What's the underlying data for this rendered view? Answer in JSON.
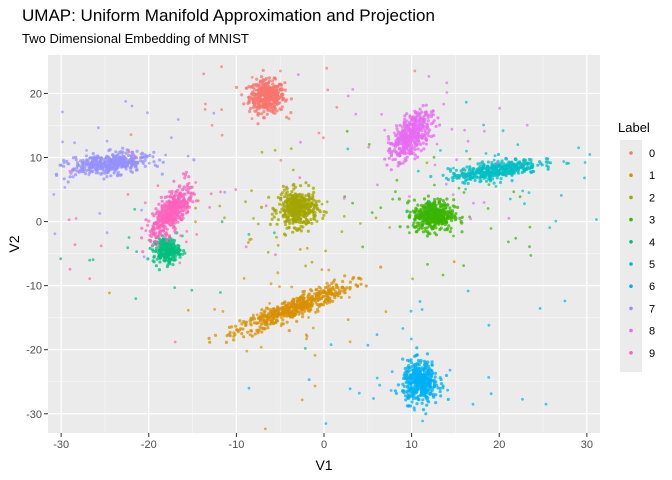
{
  "chart_data": {
    "type": "scatter",
    "title": "UMAP: Uniform Manifold Approximation and Projection",
    "subtitle": "Two Dimensional Embedding of MNIST",
    "xlabel": "V1",
    "ylabel": "V2",
    "xlim": [
      -31.5,
      31.5
    ],
    "ylim": [
      -33,
      26
    ],
    "x_ticks": [
      -30,
      -20,
      -10,
      0,
      10,
      20,
      30
    ],
    "y_ticks": [
      -30,
      -20,
      -10,
      0,
      10,
      20
    ],
    "grid": true,
    "legend": {
      "title": "Label",
      "position": "right",
      "entries": [
        "0",
        "1",
        "2",
        "3",
        "4",
        "5",
        "6",
        "7",
        "8",
        "9"
      ]
    },
    "colors": [
      "#F8766D",
      "#D89000",
      "#A3A500",
      "#39B600",
      "#00BF7D",
      "#00BFC4",
      "#00B0F6",
      "#9590FF",
      "#E76BF3",
      "#FF62BC"
    ],
    "clusters": [
      {
        "label": "0",
        "center": [
          -6.5,
          19.5
        ],
        "spread": [
          2.0,
          2.5
        ],
        "n": 420
      },
      {
        "label": "1",
        "center": [
          -3.5,
          -13.5
        ],
        "spread": [
          7.5,
          1.4
        ],
        "angle_deg": 30,
        "n": 520
      },
      {
        "label": "2",
        "center": [
          -3.0,
          2.0
        ],
        "spread": [
          2.2,
          2.8
        ],
        "n": 420
      },
      {
        "label": "3",
        "center": [
          12.5,
          1.0
        ],
        "spread": [
          2.3,
          2.4
        ],
        "n": 420
      },
      {
        "label": "4",
        "center": [
          -18.0,
          -4.5
        ],
        "spread": [
          1.5,
          2.0
        ],
        "n": 240
      },
      {
        "label": "5",
        "center": [
          19.5,
          8.0
        ],
        "spread": [
          5.0,
          1.3
        ],
        "angle_deg": 12,
        "n": 420
      },
      {
        "label": "6",
        "center": [
          11.0,
          -25.0
        ],
        "spread": [
          2.0,
          3.2
        ],
        "n": 420
      },
      {
        "label": "7",
        "center": [
          -24.5,
          9.0
        ],
        "spread": [
          4.5,
          1.6
        ],
        "angle_deg": 8,
        "n": 420
      },
      {
        "label": "8",
        "center": [
          10.0,
          13.5
        ],
        "spread": [
          1.8,
          4.0
        ],
        "angle_deg": -25,
        "n": 420
      },
      {
        "label": "9",
        "center": [
          -17.5,
          1.5
        ],
        "spread": [
          1.6,
          4.2
        ],
        "angle_deg": -25,
        "n": 420
      }
    ]
  }
}
